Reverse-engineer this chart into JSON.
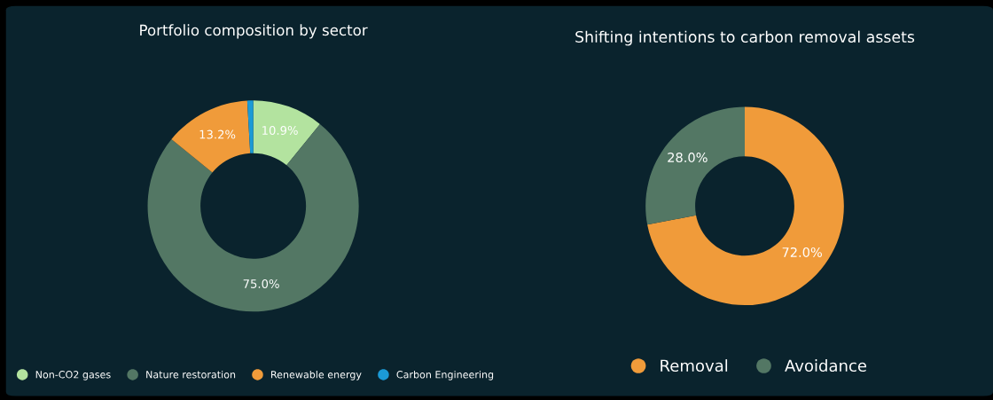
{
  "chart_data": [
    {
      "type": "donut",
      "title": "Portfolio composition by sector",
      "categories": [
        "Non-CO2 gases",
        "Nature restoration",
        "Renewable energy",
        "Carbon Engineering"
      ],
      "values": [
        10.9,
        75.0,
        13.2,
        0.9
      ],
      "value_labels": [
        "10.9%",
        "75.0%",
        "13.2%",
        null
      ],
      "colors": [
        "#b3e39f",
        "#537764",
        "#f09b3a",
        "#1b9ad6"
      ],
      "legend": "bottom"
    },
    {
      "type": "donut",
      "title": "Shifting intentions to carbon removal assets",
      "categories": [
        "Removal",
        "Avoidance"
      ],
      "values": [
        72.0,
        28.0
      ],
      "value_labels": [
        "72.0%",
        "28.0%"
      ],
      "colors": [
        "#f09b3a",
        "#537764"
      ],
      "legend": "bottom"
    }
  ]
}
